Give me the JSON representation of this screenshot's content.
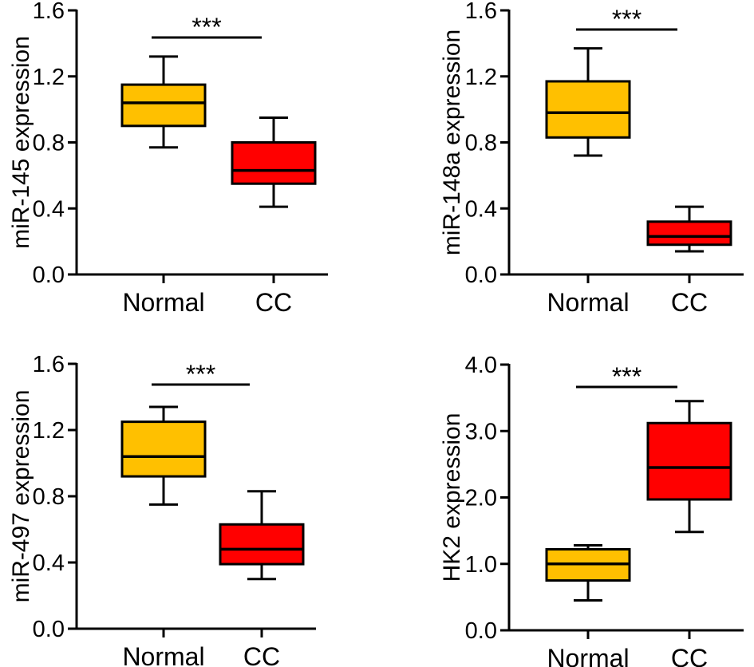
{
  "chart_data": [
    {
      "type": "box",
      "ylabel": "miR-145 expression",
      "ylim": [
        0,
        1.6
      ],
      "yticks": [
        "0.0",
        "0.4",
        "0.8",
        "1.2",
        "1.6"
      ],
      "categories": [
        "Normal",
        "CC"
      ],
      "boxes": [
        {
          "name": "Normal",
          "min": 0.77,
          "q1": 0.9,
          "median": 1.04,
          "q3": 1.15,
          "max": 1.32,
          "color": "#ffc000"
        },
        {
          "name": "CC",
          "min": 0.41,
          "q1": 0.55,
          "median": 0.63,
          "q3": 0.8,
          "max": 0.95,
          "color": "#ff0000"
        }
      ],
      "significance": "***"
    },
    {
      "type": "box",
      "ylabel": "miR-148a expression",
      "ylim": [
        0,
        1.6
      ],
      "yticks": [
        "0.0",
        "0.4",
        "0.8",
        "1.2",
        "1.6"
      ],
      "categories": [
        "Normal",
        "CC"
      ],
      "boxes": [
        {
          "name": "Normal",
          "min": 0.72,
          "q1": 0.83,
          "median": 0.98,
          "q3": 1.17,
          "max": 1.37,
          "color": "#ffc000"
        },
        {
          "name": "CC",
          "min": 0.14,
          "q1": 0.18,
          "median": 0.23,
          "q3": 0.32,
          "max": 0.41,
          "color": "#ff0000"
        }
      ],
      "significance": "***"
    },
    {
      "type": "box",
      "ylabel": "miR-497 expression",
      "ylim": [
        0,
        1.6
      ],
      "yticks": [
        "0.0",
        "0.4",
        "0.8",
        "1.2",
        "1.6"
      ],
      "categories": [
        "Normal",
        "CC"
      ],
      "boxes": [
        {
          "name": "Normal",
          "min": 0.75,
          "q1": 0.92,
          "median": 1.04,
          "q3": 1.25,
          "max": 1.34,
          "color": "#ffc000"
        },
        {
          "name": "CC",
          "min": 0.3,
          "q1": 0.39,
          "median": 0.48,
          "q3": 0.63,
          "max": 0.83,
          "color": "#ff0000"
        }
      ],
      "significance": "***"
    },
    {
      "type": "box",
      "ylabel": "HK2 expression",
      "ylim": [
        0,
        4.0
      ],
      "yticks": [
        "0.0",
        "1.0",
        "2.0",
        "3.0",
        "4.0"
      ],
      "categories": [
        "Normal",
        "CC"
      ],
      "boxes": [
        {
          "name": "Normal",
          "min": 0.45,
          "q1": 0.75,
          "median": 1.0,
          "q3": 1.22,
          "max": 1.28,
          "color": "#ffc000"
        },
        {
          "name": "CC",
          "min": 1.48,
          "q1": 1.97,
          "median": 2.45,
          "q3": 3.12,
          "max": 3.45,
          "color": "#ff0000"
        }
      ],
      "significance": "***"
    }
  ]
}
